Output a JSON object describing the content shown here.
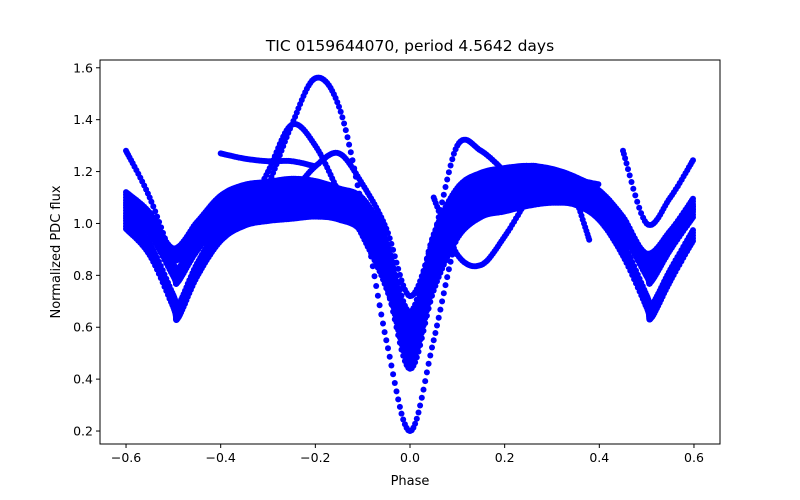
{
  "chart_data": {
    "type": "scatter",
    "title": "TIC 0159644070, period 4.5642 days",
    "xlabel": "Phase",
    "ylabel": "Normalized PDC flux",
    "xlim": [
      -0.655,
      0.655
    ],
    "ylim": [
      0.15,
      1.63
    ],
    "grid": false,
    "legend": "none",
    "marker_color": "#0000ff",
    "xticks": [
      -0.6,
      -0.4,
      -0.2,
      0.0,
      0.2,
      0.4,
      0.6
    ],
    "xtick_labels": [
      "−0.6",
      "−0.4",
      "−0.2",
      "0.0",
      "0.2",
      "0.4",
      "0.6"
    ],
    "yticks": [
      0.2,
      0.4,
      0.6,
      0.8,
      1.0,
      1.2,
      1.4,
      1.6
    ],
    "ytick_labels": [
      "0.2",
      "0.4",
      "0.6",
      "0.8",
      "1.0",
      "1.2",
      "1.4",
      "1.6"
    ],
    "series": [
      {
        "x": [
          -0.6,
          -0.55,
          -0.5,
          -0.49,
          -0.45,
          -0.4,
          -0.35,
          -0.3,
          -0.25,
          -0.2,
          -0.15,
          -0.1,
          -0.05,
          0.0,
          0.05,
          0.1,
          0.15,
          0.2,
          0.25,
          0.3,
          0.35,
          0.4,
          0.45,
          0.5,
          0.51,
          0.55,
          0.6
        ],
        "y": [
          1.05,
          0.98,
          0.82,
          0.8,
          0.92,
          1.03,
          1.07,
          1.09,
          1.1,
          1.1,
          1.08,
          1.04,
          0.85,
          0.58,
          0.85,
          1.04,
          1.09,
          1.11,
          1.12,
          1.13,
          1.12,
          1.08,
          0.98,
          0.82,
          0.8,
          0.92,
          1.05
        ]
      },
      {
        "x": [
          -0.6,
          -0.55,
          -0.5,
          -0.49,
          -0.45,
          -0.4,
          -0.35,
          -0.3,
          -0.25,
          -0.2,
          -0.15,
          -0.1,
          -0.05,
          0.0,
          0.05,
          0.1,
          0.15,
          0.2,
          0.25,
          0.3,
          0.35,
          0.4,
          0.45,
          0.5,
          0.51,
          0.55,
          0.6
        ],
        "y": [
          1.0,
          0.9,
          0.7,
          0.66,
          0.82,
          0.96,
          1.02,
          1.04,
          1.05,
          1.06,
          1.05,
          1.0,
          0.8,
          0.48,
          0.78,
          0.98,
          1.06,
          1.08,
          1.1,
          1.11,
          1.1,
          1.04,
          0.9,
          0.7,
          0.66,
          0.8,
          0.96
        ]
      },
      {
        "x": [
          -0.6,
          -0.55,
          -0.5,
          -0.45,
          -0.4,
          -0.35,
          -0.3,
          -0.25,
          -0.2,
          -0.15,
          -0.1,
          -0.05,
          0.0,
          0.05,
          0.1,
          0.15,
          0.2,
          0.25,
          0.3,
          0.35,
          0.4,
          0.45,
          0.5,
          0.55,
          0.6
        ],
        "y": [
          1.1,
          1.02,
          0.88,
          0.98,
          1.08,
          1.12,
          1.13,
          1.14,
          1.13,
          1.1,
          1.06,
          0.9,
          0.62,
          0.92,
          1.1,
          1.16,
          1.18,
          1.19,
          1.18,
          1.15,
          1.1,
          1.0,
          0.86,
          0.95,
          1.08
        ]
      },
      {
        "x": [
          -0.35,
          -0.3,
          -0.25,
          -0.2,
          -0.15,
          -0.1,
          -0.05,
          0.0,
          0.05,
          0.1,
          0.15,
          0.2
        ],
        "y": [
          1.0,
          1.15,
          1.38,
          1.56,
          1.45,
          1.05,
          0.55,
          0.2,
          0.55,
          0.95,
          1.1,
          1.14
        ]
      },
      {
        "x": [
          -0.35,
          -0.3,
          -0.25,
          -0.2,
          -0.15,
          -0.1,
          -0.05,
          0.0
        ],
        "y": [
          1.02,
          1.2,
          1.38,
          1.3,
          1.12,
          0.95,
          0.75,
          0.45
        ]
      },
      {
        "x": [
          -0.3,
          -0.25,
          -0.2,
          -0.15,
          -0.1,
          -0.05,
          0.0,
          0.05,
          0.1,
          0.15,
          0.2
        ],
        "y": [
          1.06,
          1.12,
          1.22,
          1.27,
          1.15,
          0.98,
          0.72,
          0.95,
          1.3,
          1.28,
          1.2
        ]
      },
      {
        "x": [
          -0.4,
          -0.35,
          -0.3,
          -0.25,
          -0.2
        ],
        "y": [
          1.27,
          1.25,
          1.24,
          1.24,
          1.22
        ]
      },
      {
        "x": [
          -0.6,
          -0.55,
          -0.5
        ],
        "y": [
          1.28,
          1.1,
          0.85
        ]
      },
      {
        "x": [
          0.45,
          0.5,
          0.55,
          0.6
        ],
        "y": [
          1.28,
          1.0,
          1.1,
          1.25
        ]
      },
      {
        "x": [
          0.05,
          0.1,
          0.15,
          0.2,
          0.25
        ],
        "y": [
          1.1,
          0.88,
          0.84,
          0.95,
          1.1
        ]
      },
      {
        "x": [
          0.2,
          0.25,
          0.3,
          0.35,
          0.4
        ],
        "y": [
          1.14,
          1.22,
          1.2,
          1.17,
          1.15
        ]
      },
      {
        "x": [
          0.35,
          0.38
        ],
        "y": [
          1.1,
          0.93
        ]
      }
    ]
  }
}
